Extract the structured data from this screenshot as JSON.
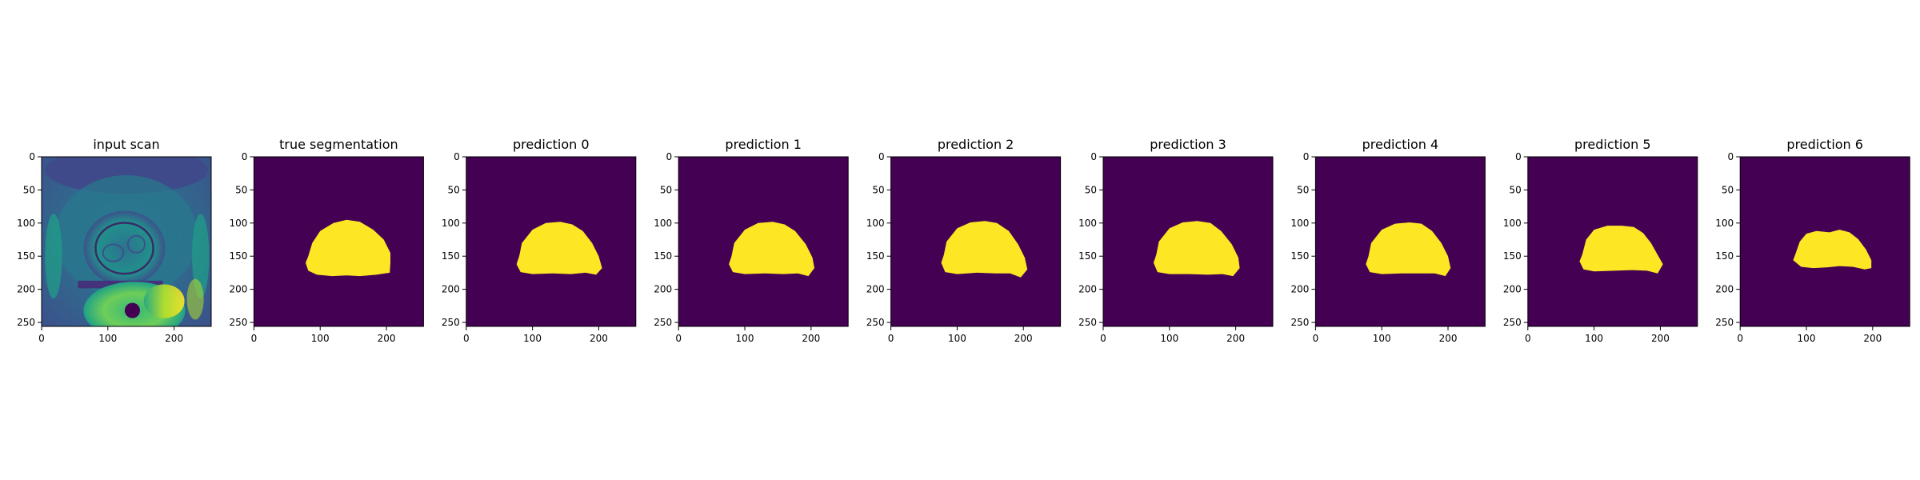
{
  "chart_data": {
    "type": "heatmap",
    "x_ticks": [
      0,
      100,
      200
    ],
    "y_ticks": [
      0,
      50,
      100,
      150,
      200,
      250
    ],
    "xlim": [
      0,
      256
    ],
    "ylim": [
      256,
      0
    ],
    "colormap": "viridis",
    "colors": {
      "background": "#440154",
      "foreground": "#fde725"
    },
    "panels": [
      {
        "title": "input scan",
        "kind": "scan"
      },
      {
        "title": "true segmentation",
        "kind": "mask",
        "outline": [
          [
            82,
            150
          ],
          [
            88,
            130
          ],
          [
            100,
            112
          ],
          [
            120,
            100
          ],
          [
            140,
            95
          ],
          [
            160,
            98
          ],
          [
            180,
            110
          ],
          [
            196,
            125
          ],
          [
            206,
            145
          ],
          [
            206,
            160
          ],
          [
            205,
            175
          ],
          [
            185,
            178
          ],
          [
            160,
            180
          ],
          [
            140,
            179
          ],
          [
            118,
            180
          ],
          [
            95,
            178
          ],
          [
            82,
            172
          ],
          [
            78,
            160
          ]
        ]
      },
      {
        "title": "prediction 0",
        "kind": "mask",
        "outline": [
          [
            80,
            150
          ],
          [
            84,
            130
          ],
          [
            100,
            110
          ],
          [
            120,
            100
          ],
          [
            142,
            98
          ],
          [
            160,
            102
          ],
          [
            176,
            112
          ],
          [
            190,
            130
          ],
          [
            200,
            150
          ],
          [
            205,
            168
          ],
          [
            196,
            178
          ],
          [
            180,
            175
          ],
          [
            158,
            177
          ],
          [
            130,
            176
          ],
          [
            100,
            177
          ],
          [
            82,
            174
          ],
          [
            76,
            162
          ]
        ]
      },
      {
        "title": "prediction 1",
        "kind": "mask",
        "outline": [
          [
            80,
            150
          ],
          [
            84,
            130
          ],
          [
            100,
            110
          ],
          [
            120,
            100
          ],
          [
            142,
            98
          ],
          [
            160,
            102
          ],
          [
            176,
            112
          ],
          [
            192,
            132
          ],
          [
            202,
            152
          ],
          [
            205,
            168
          ],
          [
            196,
            180
          ],
          [
            180,
            176
          ],
          [
            158,
            177
          ],
          [
            130,
            176
          ],
          [
            100,
            177
          ],
          [
            82,
            174
          ],
          [
            76,
            162
          ]
        ]
      },
      {
        "title": "prediction 2",
        "kind": "mask",
        "outline": [
          [
            80,
            148
          ],
          [
            84,
            128
          ],
          [
            100,
            108
          ],
          [
            120,
            99
          ],
          [
            142,
            97
          ],
          [
            160,
            100
          ],
          [
            178,
            112
          ],
          [
            192,
            132
          ],
          [
            202,
            152
          ],
          [
            206,
            170
          ],
          [
            196,
            182
          ],
          [
            180,
            176
          ],
          [
            158,
            176
          ],
          [
            130,
            175
          ],
          [
            100,
            177
          ],
          [
            82,
            174
          ],
          [
            76,
            160
          ]
        ]
      },
      {
        "title": "prediction 3",
        "kind": "mask",
        "outline": [
          [
            80,
            148
          ],
          [
            84,
            128
          ],
          [
            100,
            108
          ],
          [
            120,
            99
          ],
          [
            142,
            97
          ],
          [
            162,
            100
          ],
          [
            178,
            112
          ],
          [
            194,
            132
          ],
          [
            204,
            152
          ],
          [
            206,
            168
          ],
          [
            196,
            180
          ],
          [
            180,
            177
          ],
          [
            158,
            178
          ],
          [
            130,
            177
          ],
          [
            100,
            177
          ],
          [
            82,
            174
          ],
          [
            76,
            160
          ]
        ]
      },
      {
        "title": "prediction 4",
        "kind": "mask",
        "outline": [
          [
            80,
            150
          ],
          [
            84,
            130
          ],
          [
            100,
            110
          ],
          [
            120,
            101
          ],
          [
            142,
            99
          ],
          [
            160,
            101
          ],
          [
            176,
            112
          ],
          [
            190,
            130
          ],
          [
            200,
            150
          ],
          [
            204,
            168
          ],
          [
            196,
            180
          ],
          [
            180,
            176
          ],
          [
            158,
            176
          ],
          [
            130,
            176
          ],
          [
            100,
            177
          ],
          [
            82,
            174
          ],
          [
            76,
            162
          ]
        ]
      },
      {
        "title": "prediction 5",
        "kind": "mask",
        "outline": [
          [
            82,
            148
          ],
          [
            88,
            125
          ],
          [
            100,
            110
          ],
          [
            120,
            104
          ],
          [
            142,
            104
          ],
          [
            160,
            106
          ],
          [
            174,
            115
          ],
          [
            186,
            130
          ],
          [
            196,
            148
          ],
          [
            204,
            162
          ],
          [
            196,
            176
          ],
          [
            180,
            172
          ],
          [
            158,
            171
          ],
          [
            130,
            172
          ],
          [
            100,
            173
          ],
          [
            84,
            170
          ],
          [
            78,
            158
          ]
        ]
      },
      {
        "title": "prediction 6",
        "kind": "mask",
        "outline": [
          [
            84,
            145
          ],
          [
            90,
            128
          ],
          [
            100,
            116
          ],
          [
            115,
            112
          ],
          [
            135,
            114
          ],
          [
            150,
            110
          ],
          [
            165,
            114
          ],
          [
            178,
            124
          ],
          [
            190,
            140
          ],
          [
            198,
            156
          ],
          [
            198,
            168
          ],
          [
            188,
            170
          ],
          [
            170,
            166
          ],
          [
            150,
            165
          ],
          [
            130,
            167
          ],
          [
            110,
            168
          ],
          [
            92,
            166
          ],
          [
            80,
            156
          ]
        ]
      }
    ]
  }
}
